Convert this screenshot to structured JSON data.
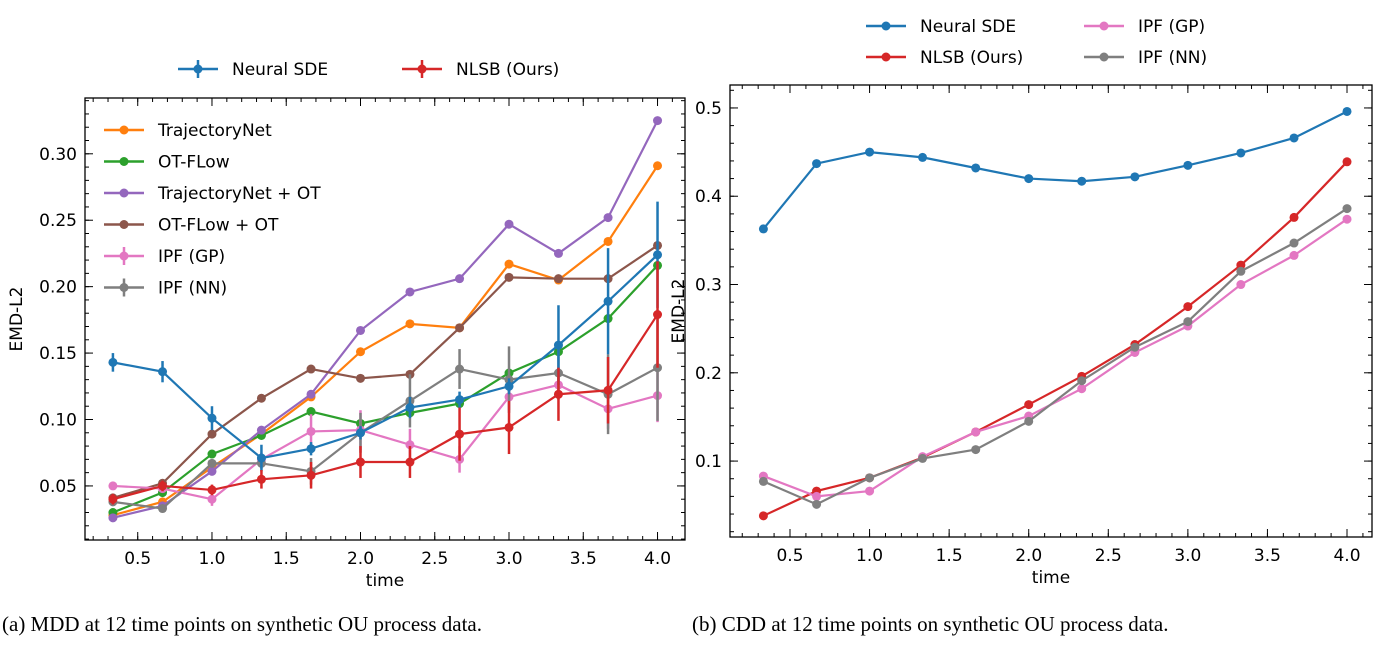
{
  "chart_data": [
    {
      "type": "line",
      "caption": "(a) MDD at 12 time points on synthetic OU process data.",
      "xlabel": "time",
      "ylabel": "EMD-L2",
      "xlim": [
        0.145,
        4.185
      ],
      "ylim": [
        0.0093,
        0.342
      ],
      "xticks": [
        0.5,
        1.0,
        1.5,
        2.0,
        2.5,
        3.0,
        3.5,
        4.0
      ],
      "xtick_labels": [
        "0.5",
        "1.0",
        "1.5",
        "2.0",
        "2.5",
        "3.0",
        "3.5",
        "4.0"
      ],
      "yticks": [
        0.05,
        0.1,
        0.15,
        0.2,
        0.25,
        0.3
      ],
      "ytick_labels": [
        "0.05",
        "0.10",
        "0.15",
        "0.20",
        "0.25",
        "0.30"
      ],
      "grid": false,
      "legend_outside": [
        "Neural SDE",
        "NLSB (Ours)"
      ],
      "legend_inside_placement": "top-left",
      "x": [
        0.333,
        0.667,
        1.0,
        1.333,
        1.667,
        2.0,
        2.333,
        2.667,
        3.0,
        3.333,
        3.667,
        4.0
      ],
      "series": [
        {
          "name": "TrajectoryNet",
          "color": "#ff7f0e",
          "legend": "inside",
          "values": [
            0.028,
            0.038,
            0.064,
            0.089,
            0.117,
            0.151,
            0.172,
            0.169,
            0.217,
            0.205,
            0.234,
            0.291
          ]
        },
        {
          "name": "OT-FLow",
          "color": "#2ca02c",
          "legend": "inside",
          "values": [
            0.03,
            0.045,
            0.074,
            0.088,
            0.106,
            0.097,
            0.105,
            0.112,
            0.135,
            0.151,
            0.176,
            0.216
          ]
        },
        {
          "name": "TrajectoryNet + OT",
          "color": "#9467bd",
          "legend": "inside",
          "values": [
            0.026,
            0.035,
            0.061,
            0.092,
            0.119,
            0.167,
            0.196,
            0.206,
            0.247,
            0.225,
            0.252,
            0.325
          ]
        },
        {
          "name": "OT-FLow + OT",
          "color": "#8c564b",
          "legend": "inside",
          "values": [
            0.041,
            0.052,
            0.089,
            0.116,
            0.138,
            0.131,
            0.134,
            0.169,
            0.207,
            0.206,
            0.206,
            0.231
          ]
        },
        {
          "name": "IPF (GP)",
          "color": "#e377c2",
          "legend": "inside",
          "values": [
            0.05,
            0.048,
            0.04,
            0.07,
            0.091,
            0.092,
            0.081,
            0.07,
            0.117,
            0.126,
            0.108,
            0.118
          ],
          "errors": [
            0.003,
            0.003,
            0.005,
            0.005,
            0.013,
            0.015,
            0.012,
            0.01,
            0.01,
            0.01,
            0.015,
            0.02
          ]
        },
        {
          "name": "IPF (NN)",
          "color": "#7f7f7f",
          "legend": "inside",
          "values": [
            0.038,
            0.033,
            0.067,
            0.067,
            0.061,
            0.09,
            0.114,
            0.138,
            0.13,
            0.135,
            0.119,
            0.139
          ],
          "errors": [
            0.003,
            0.003,
            0.003,
            0.004,
            0.01,
            0.015,
            0.02,
            0.015,
            0.025,
            0.02,
            0.03,
            0.04
          ]
        },
        {
          "name": "Neural SDE",
          "color": "#1f77b4",
          "legend": "outside",
          "values": [
            0.143,
            0.136,
            0.101,
            0.071,
            0.078,
            0.09,
            0.109,
            0.115,
            0.125,
            0.156,
            0.189,
            0.224
          ],
          "errors": [
            0.007,
            0.008,
            0.009,
            0.01,
            0.005,
            0.005,
            0.008,
            0.006,
            0.006,
            0.03,
            0.04,
            0.04
          ]
        },
        {
          "name": "NLSB (Ours)",
          "color": "#d62728",
          "legend": "outside",
          "values": [
            0.04,
            0.05,
            0.047,
            0.055,
            0.058,
            0.068,
            0.068,
            0.089,
            0.094,
            0.119,
            0.122,
            0.179
          ],
          "errors": [
            0.004,
            0.004,
            0.004,
            0.007,
            0.01,
            0.012,
            0.012,
            0.02,
            0.02,
            0.02,
            0.025,
            0.04
          ]
        }
      ]
    },
    {
      "type": "line",
      "caption": "(b) CDD at 12 time points on synthetic OU process data.",
      "xlabel": "time",
      "ylabel": "EMD-L2",
      "xlim": [
        0.123,
        4.157
      ],
      "ylim": [
        0.014,
        0.526
      ],
      "xticks": [
        0.5,
        1.0,
        1.5,
        2.0,
        2.5,
        3.0,
        3.5,
        4.0
      ],
      "xtick_labels": [
        "0.5",
        "1.0",
        "1.5",
        "2.0",
        "2.5",
        "3.0",
        "3.5",
        "4.0"
      ],
      "yticks": [
        0.1,
        0.2,
        0.3,
        0.4,
        0.5
      ],
      "ytick_labels": [
        "0.1",
        "0.2",
        "0.3",
        "0.4",
        "0.5"
      ],
      "grid": false,
      "legend_placement": "top-outside",
      "x": [
        0.333,
        0.667,
        1.0,
        1.333,
        1.667,
        2.0,
        2.333,
        2.667,
        3.0,
        3.333,
        3.667,
        4.0
      ],
      "series": [
        {
          "name": "Neural SDE",
          "color": "#1f77b4",
          "values": [
            0.363,
            0.437,
            0.45,
            0.444,
            0.432,
            0.42,
            0.417,
            0.422,
            0.435,
            0.449,
            0.466,
            0.496
          ]
        },
        {
          "name": "NLSB (Ours)",
          "color": "#d62728",
          "values": [
            0.038,
            0.066,
            0.081,
            0.104,
            0.133,
            0.164,
            0.196,
            0.232,
            0.275,
            0.322,
            0.376,
            0.439
          ]
        },
        {
          "name": "IPF (GP)",
          "color": "#e377c2",
          "values": [
            0.083,
            0.06,
            0.066,
            0.105,
            0.133,
            0.151,
            0.182,
            0.223,
            0.253,
            0.3,
            0.333,
            0.374
          ]
        },
        {
          "name": "IPF (NN)",
          "color": "#7f7f7f",
          "values": [
            0.077,
            0.051,
            0.081,
            0.103,
            0.113,
            0.145,
            0.191,
            0.229,
            0.258,
            0.315,
            0.347,
            0.386
          ]
        }
      ]
    }
  ]
}
